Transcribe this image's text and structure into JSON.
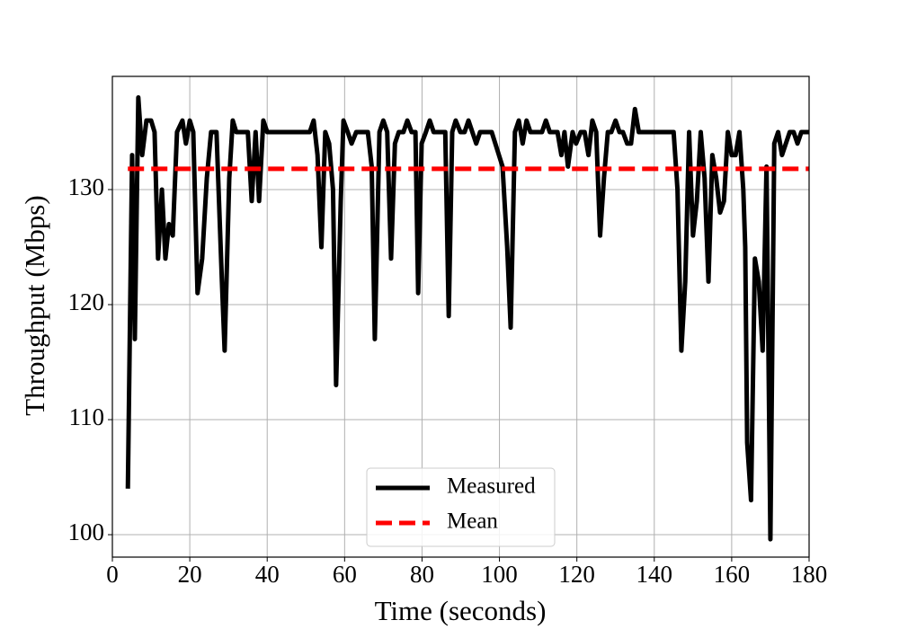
{
  "chart_data": {
    "type": "line",
    "xlabel": "Time (seconds)",
    "ylabel": "Throughput (Mbps)",
    "xlim": [
      0,
      180
    ],
    "ylim": [
      98.05,
      139.84
    ],
    "xticks": [
      0,
      20,
      40,
      60,
      80,
      100,
      120,
      140,
      160,
      180
    ],
    "yticks": [
      100,
      110,
      120,
      130
    ],
    "grid": true,
    "legend": "lower center",
    "x": [
      4,
      5.1,
      5.8,
      6.7,
      7.7,
      8.8,
      10,
      10.9,
      11.8,
      12.8,
      13.7,
      14.6,
      15.6,
      16.7,
      18.1,
      19,
      20,
      20.9,
      22,
      23.2,
      24.4,
      25.5,
      26.9,
      28.3,
      29,
      30.2,
      31.1,
      32,
      35,
      36,
      37,
      37.9,
      39,
      40,
      51,
      52,
      53,
      54,
      55,
      56,
      57,
      57.8,
      59,
      59.7,
      60.8,
      61.8,
      63,
      66,
      67,
      67.8,
      69,
      70,
      71,
      72,
      73,
      74,
      75.2,
      76.2,
      77.3,
      78.3,
      79,
      79.9,
      81,
      82,
      83,
      86,
      86.9,
      87.8,
      88.7,
      89.9,
      91,
      92,
      93,
      94,
      95,
      98,
      100.8,
      102,
      102.9,
      104,
      105,
      106,
      107,
      108,
      111,
      112,
      113,
      115,
      116,
      116.8,
      117.7,
      118.9,
      119.8,
      121,
      122,
      123,
      124,
      125,
      126,
      127,
      128,
      128.9,
      130,
      131,
      131.9,
      133,
      134,
      135,
      136,
      145,
      146,
      147,
      148,
      149,
      150,
      151,
      152,
      153,
      154,
      155,
      156,
      157,
      158,
      159,
      160,
      161,
      162,
      163,
      163.5,
      164,
      165,
      166,
      167,
      168,
      169,
      170,
      171,
      172,
      173,
      174,
      175,
      176,
      177,
      178,
      179,
      180
    ],
    "series": [
      {
        "name": "Measured",
        "color": "#000000",
        "values": [
          104,
          133,
          117,
          138,
          133,
          136,
          136,
          135,
          124,
          130,
          124,
          127,
          126,
          135,
          136,
          134,
          136,
          135,
          121,
          124,
          131,
          135,
          135,
          122,
          116,
          131,
          136,
          135,
          135,
          129,
          135,
          129,
          136,
          135,
          135,
          136,
          133,
          125,
          135,
          134,
          130,
          113,
          129,
          136,
          135,
          134,
          135,
          135,
          132,
          117,
          135,
          136,
          135,
          124,
          134,
          135,
          135,
          136,
          135,
          135,
          121,
          134,
          135,
          136,
          135,
          135,
          119,
          135,
          136,
          135,
          135,
          136,
          135,
          134,
          135,
          135,
          132,
          125,
          118,
          135,
          136,
          134,
          136,
          135,
          135,
          136,
          135,
          135,
          133,
          135,
          132,
          135,
          134,
          135,
          135,
          133,
          136,
          135,
          126,
          131,
          135,
          135,
          136,
          135,
          135,
          134,
          134,
          137,
          135,
          135,
          130,
          116,
          122,
          135,
          126,
          129,
          135,
          131,
          122,
          133,
          131,
          128,
          129,
          135,
          133,
          133,
          135,
          130,
          125,
          108,
          103,
          124,
          122,
          116,
          132,
          99.6,
          134,
          135,
          133,
          134,
          135,
          135,
          134,
          135,
          135,
          135
        ]
      }
    ],
    "reference_lines": [
      {
        "name": "Mean",
        "value": 131.8,
        "color": "#ff0000",
        "style": "dashed"
      }
    ]
  }
}
